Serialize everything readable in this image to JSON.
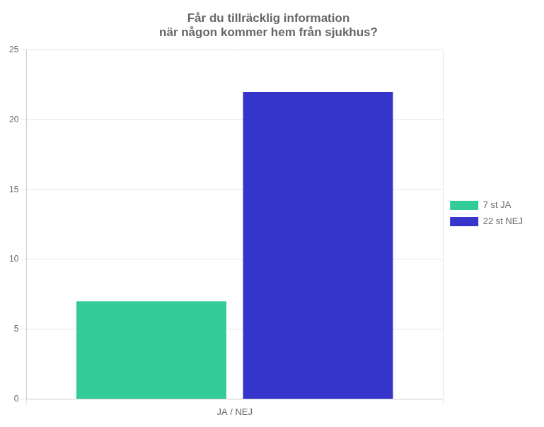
{
  "chart_data": {
    "type": "bar",
    "title": "Får du tillräcklig information\nnär någon kommer hem från sjukhus?",
    "categories": [
      "JA / NEJ"
    ],
    "series": [
      {
        "name": "7 st JA",
        "color": "#33cc99",
        "values": [
          7
        ]
      },
      {
        "name": "22 st NEJ",
        "color": "#3535cc",
        "values": [
          22
        ]
      }
    ],
    "ylim": [
      0,
      25
    ],
    "yticks": [
      0,
      5,
      10,
      15,
      20,
      25
    ],
    "grid": true,
    "legend": "right"
  }
}
